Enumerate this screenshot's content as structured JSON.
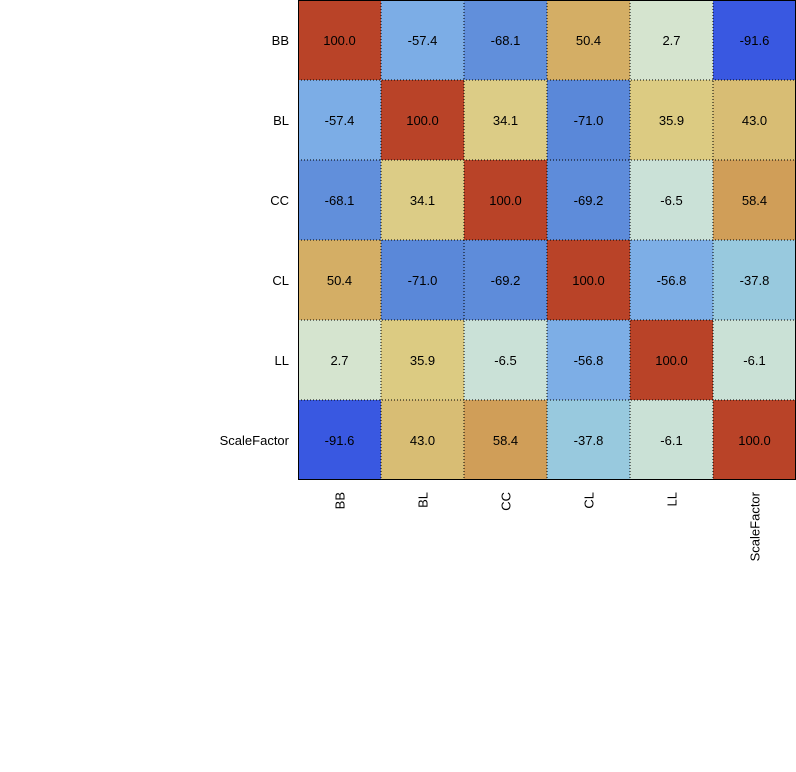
{
  "chart_data": {
    "type": "heatmap",
    "title": "",
    "xlabel": "",
    "ylabel": "",
    "x_categories": [
      "BB",
      "BL",
      "CC",
      "CL",
      "LL",
      "ScaleFactor"
    ],
    "y_categories": [
      "BB",
      "BL",
      "CC",
      "CL",
      "LL",
      "ScaleFactor"
    ],
    "value_range": [
      -100,
      100
    ],
    "values": [
      [
        100.0,
        -57.4,
        -68.1,
        50.4,
        2.7,
        -91.6
      ],
      [
        -57.4,
        100.0,
        34.1,
        -71.0,
        35.9,
        43.0
      ],
      [
        -68.1,
        34.1,
        100.0,
        -69.2,
        -6.5,
        58.4
      ],
      [
        50.4,
        -71.0,
        -69.2,
        100.0,
        -56.8,
        -37.8
      ],
      [
        2.7,
        35.9,
        -6.5,
        -56.8,
        100.0,
        -6.1
      ],
      [
        -91.6,
        43.0,
        58.4,
        -37.8,
        -6.1,
        100.0
      ]
    ],
    "grid": true,
    "colors": {
      "strong_negative": "#2c45e4",
      "negative": "#5c8ad9",
      "weak_negative": "#7daee6",
      "slight_negative": "#98c9de",
      "near_zero": "#d4e6d5",
      "weak_positive": "#dccb82",
      "positive": "#d2a55c",
      "strong_positive": "#b94328"
    }
  }
}
